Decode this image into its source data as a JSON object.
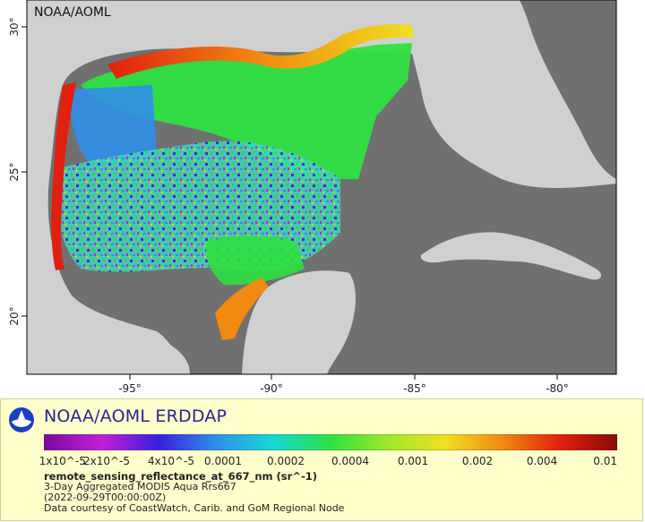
{
  "header": {
    "corner_label": "NOAA/AOML"
  },
  "axes": {
    "x_ticks": [
      "-95°",
      "-90°",
      "-85°",
      "-80°"
    ],
    "y_ticks": [
      "30°",
      "25°",
      "20°"
    ]
  },
  "legend": {
    "title": "NOAA/AOML ERDDAP",
    "colorbar_ticks": [
      "1x10^-5",
      "2x10^-5",
      "4x10^-5",
      "0.0001",
      "0.0002",
      "0.0004",
      "0.001",
      "0.002",
      "0.004",
      "0.01"
    ],
    "variable": "remote_sensing_reflectance_at_667_nm (sr^-1)",
    "line1": "3-Day Aggregated MODIS Aqua Rrs667",
    "line2": "(2022-09-29T00:00:00Z)",
    "line3": "Data courtesy of CoastWatch, Carib. and GoM Regional Node"
  },
  "colors": {
    "land": "#d0d0d0",
    "no_data_ocean": "#707070",
    "legend_bg": "#ffffcc",
    "title_color": "#2a1f9a",
    "colorbar_stops": [
      "#7a0aa0",
      "#c21fd6",
      "#3a1ee0",
      "#2f8fe8",
      "#19d6d6",
      "#2ee040",
      "#9ee82a",
      "#f0e020",
      "#f08a10",
      "#e02010",
      "#8a0a0a"
    ]
  },
  "icons": {
    "logo": "noaa-logo-icon"
  }
}
